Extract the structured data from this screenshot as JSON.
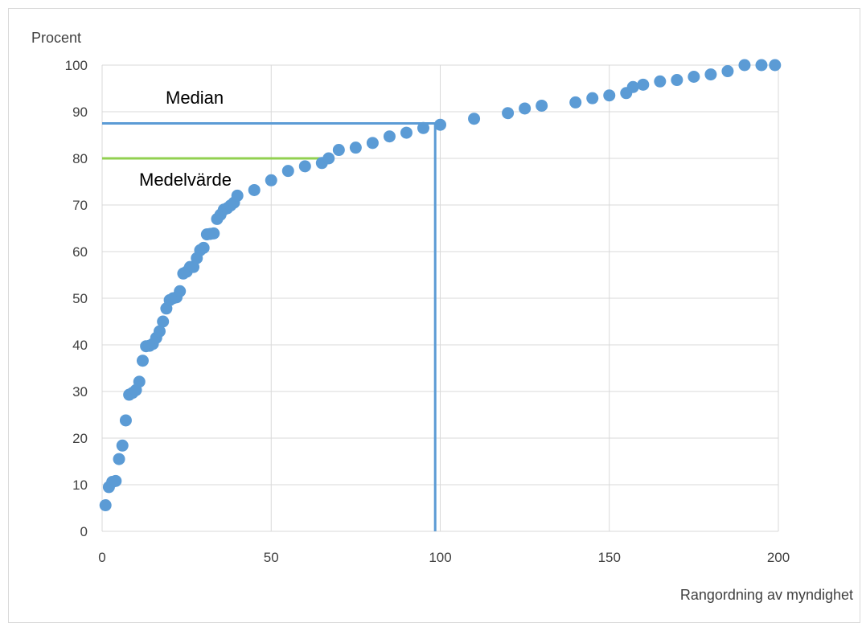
{
  "chart_data": {
    "type": "scatter",
    "ylabel": "Procent",
    "xlabel": "Rangordning av myndighet",
    "xlim": [
      0,
      200
    ],
    "ylim": [
      0,
      100
    ],
    "xticks": [
      "0",
      "50",
      "100",
      "150",
      "200"
    ],
    "yticks": [
      "0",
      "10",
      "20",
      "30",
      "40",
      "50",
      "60",
      "70",
      "80",
      "90",
      "100"
    ],
    "grid": true,
    "legend": "none",
    "colors": {
      "points": "#5b9bd5",
      "median": "#5b9bd5",
      "mean": "#92d050",
      "grid": "#d9d9d9"
    },
    "series": [
      {
        "x": [
          1,
          2,
          3,
          4,
          5,
          6,
          7,
          8,
          9,
          10,
          11,
          12,
          13,
          14,
          15,
          16,
          17,
          18,
          19,
          20,
          21,
          22,
          23,
          24,
          25,
          26,
          27,
          28,
          29,
          30,
          31,
          32,
          33,
          34,
          35,
          36,
          37,
          38,
          39,
          40,
          45,
          50,
          55,
          60,
          65,
          67,
          70,
          75,
          80,
          85,
          90,
          95,
          100,
          110,
          120,
          125,
          130,
          140,
          145,
          150,
          155,
          157,
          160,
          165,
          170,
          175,
          180,
          185,
          190,
          195,
          199
        ],
        "y": [
          5.6,
          9.5,
          10.6,
          10.8,
          15.5,
          18.4,
          23.8,
          29.3,
          29.7,
          30.3,
          32.1,
          36.6,
          39.7,
          39.8,
          40.2,
          41.5,
          42.9,
          45,
          47.8,
          49.6,
          50,
          50.2,
          51.5,
          55.3,
          55.7,
          56.7,
          56.7,
          58.6,
          60.3,
          60.8,
          63.7,
          63.8,
          63.9,
          67,
          67.9,
          69,
          69.3,
          69.9,
          70.5,
          72,
          73.2,
          75.3,
          77.3,
          78.3,
          79,
          80,
          81.8,
          82.3,
          83.3,
          84.7,
          85.5,
          86.5,
          87.2,
          88.5,
          89.7,
          90.7,
          91.3,
          92,
          92.9,
          93.5,
          94,
          95.3,
          95.8,
          96.5,
          96.8,
          97.5,
          98,
          98.7,
          100,
          100,
          100
        ]
      }
    ],
    "reference_lines": [
      {
        "label": "Median",
        "y": 87.5,
        "x": 98.5
      },
      {
        "label": "Medelvärde",
        "y": 80,
        "x": 66
      }
    ]
  }
}
